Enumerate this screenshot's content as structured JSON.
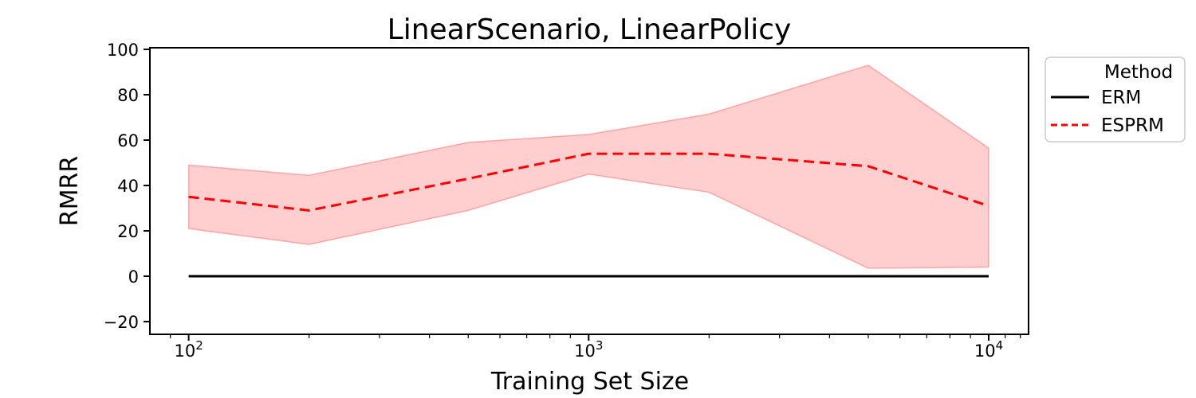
{
  "chart_data": {
    "type": "line",
    "title": "LinearScenario, LinearPolicy",
    "xlabel": "Training Set Size",
    "ylabel": "RMRR",
    "xscale": "log",
    "xlim": [
      80,
      12580
    ],
    "ylim": [
      -25.6,
      100.7
    ],
    "grid": false,
    "x": [
      100,
      200,
      500,
      1000,
      2000,
      5000,
      10000
    ],
    "series": [
      {
        "name": "ERM",
        "color": "#000000",
        "linestyle": "solid",
        "values": [
          0,
          0,
          0,
          0,
          0,
          0,
          0
        ]
      },
      {
        "name": "ESPRM",
        "color": "#ff0000",
        "linestyle": "dashed",
        "values": [
          35,
          29,
          43,
          54,
          54,
          48.5,
          31
        ],
        "band_lower": [
          21,
          14,
          29,
          45,
          37,
          3.5,
          4
        ],
        "band_upper": [
          49,
          44.5,
          59,
          62.5,
          71.5,
          93,
          56.5
        ],
        "band_color": "#ff0000",
        "band_alpha": 0.19
      }
    ],
    "legend": {
      "title": "Method",
      "position": "outside upper right",
      "entries": [
        {
          "label": "ERM",
          "color": "#000000",
          "linestyle": "solid"
        },
        {
          "label": "ESPRM",
          "color": "#ff0000",
          "linestyle": "dashed"
        }
      ]
    },
    "yticks": {
      "values": [
        -20,
        0,
        20,
        40,
        60,
        80,
        100
      ],
      "labels": [
        "−20",
        "0",
        "20",
        "40",
        "60",
        "80",
        "100"
      ]
    },
    "xticks": {
      "values": [
        100,
        1000,
        10000
      ],
      "base": "10",
      "exponents": [
        "2",
        "3",
        "4"
      ]
    },
    "xminorticks": [
      90,
      200,
      300,
      400,
      500,
      600,
      700,
      800,
      900,
      2000,
      3000,
      4000,
      5000,
      6000,
      7000,
      8000,
      9000,
      11000,
      12000
    ]
  }
}
